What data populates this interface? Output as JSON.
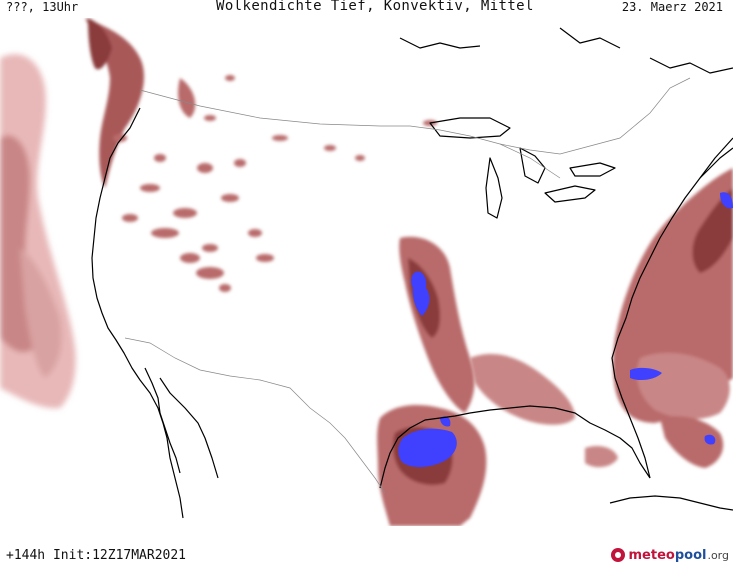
{
  "header": {
    "left": "???, 13Uhr",
    "center": "Wolkendichte   Tief, Konvektiv, Mittel",
    "right": "23. Maerz 2021"
  },
  "footer": {
    "init": "+144h  Init:12Z17MAR2021"
  },
  "brand": {
    "part1": "meteo",
    "part2": "pool",
    "part3": ".org"
  },
  "colors": {
    "cloud_light": "#e8b8b8",
    "cloud_mid": "#b96a6a",
    "cloud_dark": "#8a3a3a",
    "convective": "#4040ff",
    "coastline": "#000000",
    "borders": "#888888"
  }
}
